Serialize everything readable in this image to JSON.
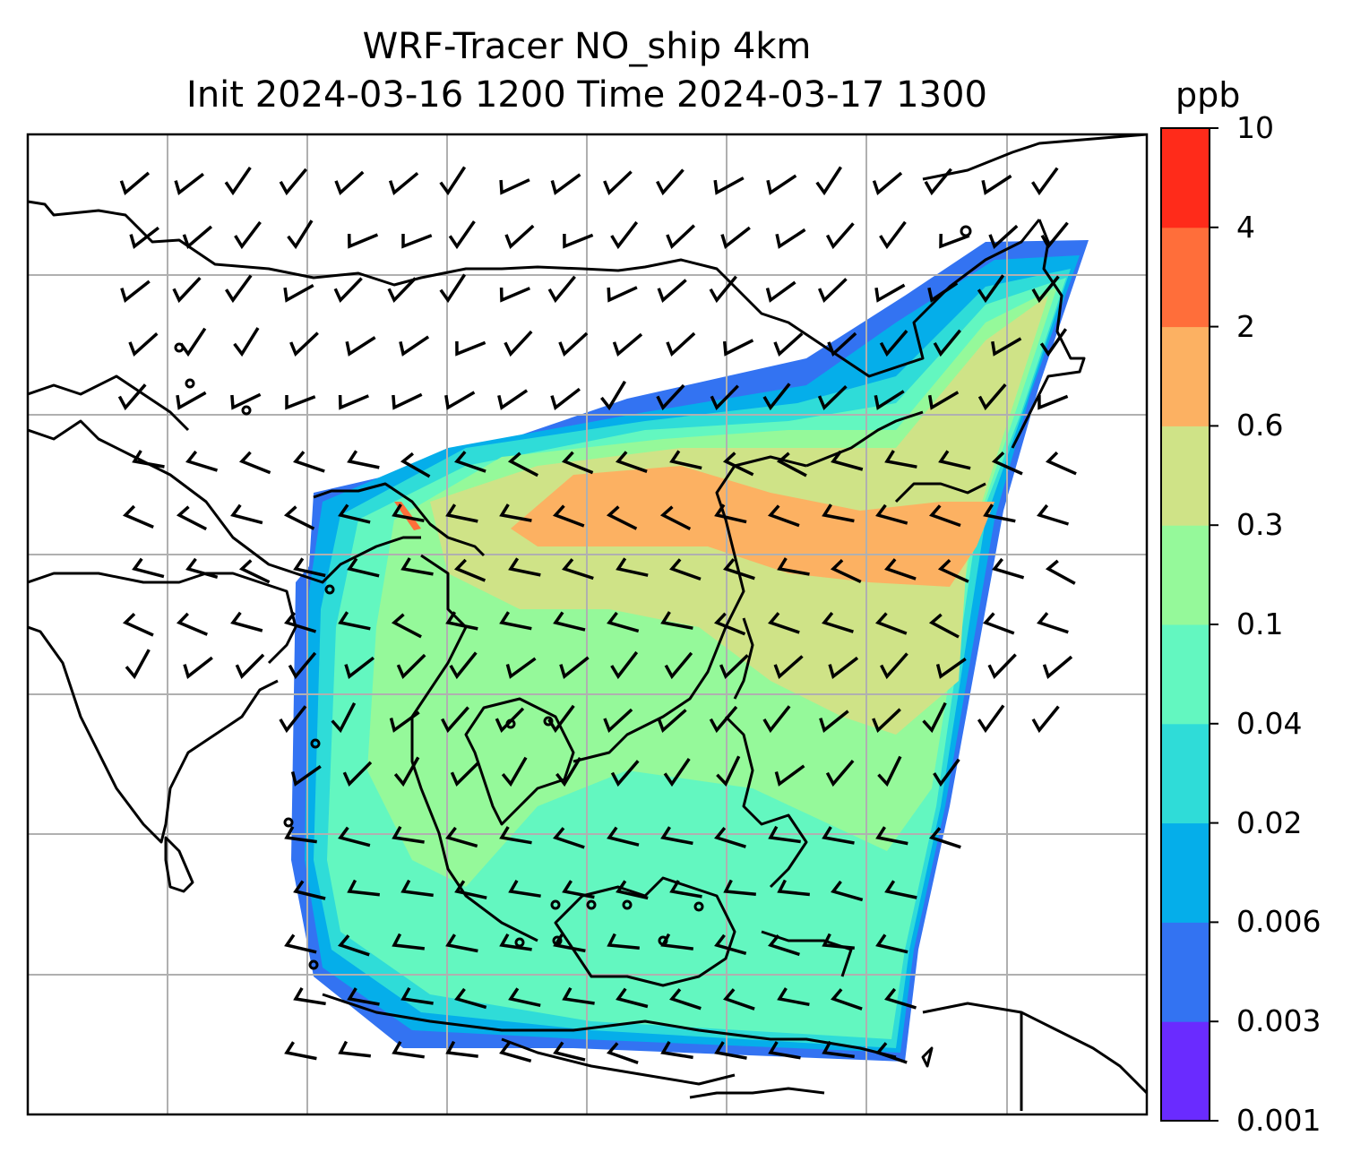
{
  "title_line1": "WRF-Tracer NO_ship 4km",
  "title_line2": "Init 2024-03-16 1200 Time 2024-03-17 1300",
  "colorbar": {
    "unit": "ppb",
    "ticks": [
      "0.001",
      "0.003",
      "0.006",
      "0.02",
      "0.04",
      "0.1",
      "0.3",
      "0.6",
      "2",
      "4",
      "10"
    ],
    "colors": [
      "#6a2bff",
      "#3373f2",
      "#05aeea",
      "#2fdcd8",
      "#63f7c0",
      "#95f99a",
      "#cfe387",
      "#fcb162",
      "#ff6e3a",
      "#ff2b1a"
    ]
  },
  "map": {
    "land_outline_color": "#000000",
    "gridline_color": "#b0b0b0",
    "wind_barb_color": "#000000"
  }
}
